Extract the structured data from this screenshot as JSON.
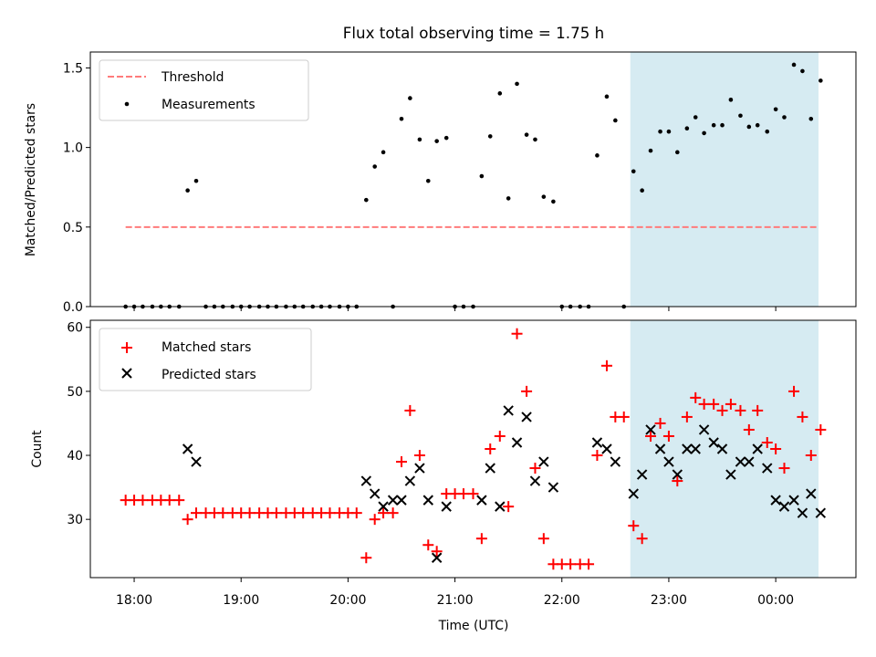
{
  "title": "Flux total observing time = 1.75 h",
  "colors": {
    "threshold": "#ff7b7b",
    "measure": "#000000",
    "matched": "#ff0000",
    "predicted": "#000000",
    "highlight": "#add8e6"
  },
  "chart_data": [
    {
      "type": "scatter",
      "ylabel": "Matched/Predicted stars",
      "ylim": [
        0,
        1.6
      ],
      "yticks": [
        "0.0",
        "0.5",
        "1.0",
        "1.5"
      ],
      "xlim_hours": [
        17.59,
        24.75
      ],
      "highlight_span_hours": [
        22.64,
        24.4
      ],
      "threshold": {
        "name": "Threshold",
        "value": 0.5,
        "x_range_hours": [
          17.92,
          24.38
        ]
      },
      "legend": {
        "position": "upper left",
        "entries": [
          "Threshold",
          "Measurements"
        ]
      },
      "series": [
        {
          "name": "Measurements",
          "x_hours": [
            17.92,
            18.0,
            18.08,
            18.17,
            18.25,
            18.33,
            18.42,
            18.5,
            18.58,
            18.67,
            18.75,
            18.83,
            18.92,
            19.0,
            19.08,
            19.17,
            19.25,
            19.33,
            19.42,
            19.5,
            19.58,
            19.67,
            19.75,
            19.83,
            19.92,
            20.0,
            20.08,
            20.17,
            20.25,
            20.33,
            20.42,
            20.5,
            20.58,
            20.67,
            20.75,
            20.83,
            20.92,
            21.0,
            21.08,
            21.17,
            21.25,
            21.33,
            21.42,
            21.5,
            21.58,
            21.67,
            21.75,
            21.83,
            21.92,
            22.0,
            22.08,
            22.17,
            22.25,
            22.33,
            22.42,
            22.5,
            22.58,
            22.67,
            22.75,
            22.83,
            22.92,
            23.0,
            23.08,
            23.17,
            23.25,
            23.33,
            23.42,
            23.5,
            23.58,
            23.67,
            23.75,
            23.83,
            23.92,
            24.0,
            24.08,
            24.17,
            24.25,
            24.33,
            24.42
          ],
          "y": [
            0,
            0,
            0,
            0,
            0,
            0,
            0,
            0.73,
            0.79,
            0,
            0,
            0,
            0,
            0,
            0,
            0,
            0,
            0,
            0,
            0,
            0,
            0,
            0,
            0,
            0,
            0,
            0,
            0.67,
            0.88,
            0.97,
            0,
            1.18,
            1.31,
            1.05,
            0.79,
            1.04,
            1.06,
            0,
            0,
            0,
            0.82,
            1.07,
            1.34,
            0.68,
            1.4,
            1.08,
            1.05,
            0.69,
            0.66,
            0,
            0,
            0,
            0,
            0.95,
            1.32,
            1.17,
            0,
            0.85,
            0.73,
            0.98,
            1.1,
            1.1,
            0.97,
            1.12,
            1.19,
            1.09,
            1.14,
            1.14,
            1.3,
            1.2,
            1.13,
            1.14,
            1.1,
            1.24,
            1.19,
            1.52,
            1.48,
            1.18,
            1.42
          ]
        }
      ]
    },
    {
      "type": "scatter",
      "xlabel": "Time (UTC)",
      "ylabel": "Count",
      "ylim": [
        20.9,
        61.1
      ],
      "yticks": [
        "30",
        "40",
        "50",
        "60"
      ],
      "xticks": [
        "18:00",
        "19:00",
        "20:00",
        "21:00",
        "22:00",
        "23:00",
        "00:00"
      ],
      "xlim_hours": [
        17.59,
        24.75
      ],
      "highlight_span_hours": [
        22.64,
        24.4
      ],
      "legend": {
        "position": "upper left",
        "entries": [
          "Matched stars",
          "Predicted stars"
        ]
      },
      "series": [
        {
          "name": "Matched stars",
          "marker": "+",
          "x_hours": [
            17.92,
            18.0,
            18.08,
            18.17,
            18.25,
            18.33,
            18.42,
            18.5,
            18.58,
            18.67,
            18.75,
            18.83,
            18.92,
            19.0,
            19.08,
            19.17,
            19.25,
            19.33,
            19.42,
            19.5,
            19.58,
            19.67,
            19.75,
            19.83,
            19.92,
            20.0,
            20.08,
            20.17,
            20.25,
            20.33,
            20.42,
            20.5,
            20.58,
            20.67,
            20.75,
            20.83,
            20.92,
            21.0,
            21.08,
            21.17,
            21.25,
            21.33,
            21.42,
            21.5,
            21.58,
            21.67,
            21.75,
            21.83,
            21.92,
            22.0,
            22.08,
            22.17,
            22.25,
            22.33,
            22.42,
            22.5,
            22.58,
            22.67,
            22.75,
            22.83,
            22.92,
            23.0,
            23.08,
            23.17,
            23.25,
            23.33,
            23.42,
            23.5,
            23.58,
            23.67,
            23.75,
            23.83,
            23.92,
            24.0,
            24.08,
            24.17,
            24.25,
            24.33,
            24.42
          ],
          "y": [
            33,
            33,
            33,
            33,
            33,
            33,
            33,
            30,
            31,
            31,
            31,
            31,
            31,
            31,
            31,
            31,
            31,
            31,
            31,
            31,
            31,
            31,
            31,
            31,
            31,
            31,
            31,
            24,
            30,
            31,
            31,
            39,
            47,
            40,
            26,
            25,
            34,
            34,
            34,
            34,
            27,
            41,
            43,
            32,
            59,
            50,
            38,
            27,
            23,
            23,
            23,
            23,
            23,
            40,
            54,
            46,
            46,
            29,
            27,
            43,
            45,
            43,
            36,
            46,
            49,
            48,
            48,
            47,
            48,
            47,
            44,
            47,
            42,
            41,
            38,
            50,
            46,
            40,
            44
          ]
        },
        {
          "name": "Predicted stars",
          "marker": "x",
          "x_hours": [
            18.5,
            18.58,
            20.17,
            20.25,
            20.33,
            20.42,
            20.5,
            20.58,
            20.67,
            20.75,
            20.83,
            20.92,
            21.25,
            21.33,
            21.42,
            21.5,
            21.58,
            21.67,
            21.75,
            21.83,
            21.92,
            22.33,
            22.42,
            22.5,
            22.67,
            22.75,
            22.83,
            22.92,
            23.0,
            23.08,
            23.17,
            23.25,
            23.33,
            23.42,
            23.5,
            23.58,
            23.67,
            23.75,
            23.83,
            23.92,
            24.0,
            24.08,
            24.17,
            24.25,
            24.33,
            24.42
          ],
          "y": [
            41,
            39,
            36,
            34,
            32,
            33,
            33,
            36,
            38,
            33,
            24,
            32,
            33,
            38,
            32,
            47,
            42,
            46,
            36,
            39,
            35,
            42,
            41,
            39,
            34,
            37,
            44,
            41,
            39,
            37,
            41,
            41,
            44,
            42,
            41,
            37,
            39,
            39,
            41,
            38,
            33,
            32,
            33,
            31,
            34,
            31
          ]
        }
      ]
    }
  ]
}
